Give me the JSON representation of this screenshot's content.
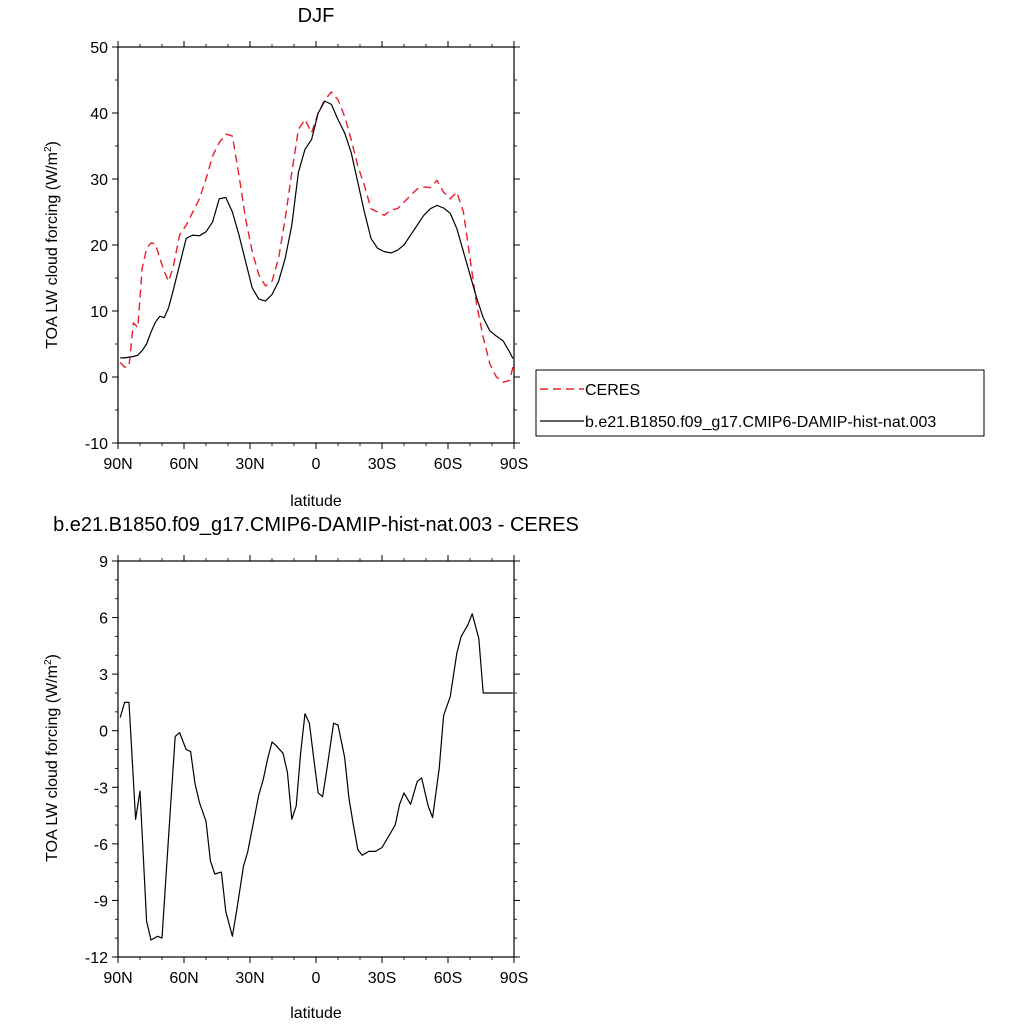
{
  "chart_data": [
    {
      "type": "line",
      "title": "DJF",
      "xlabel": "latitude",
      "ylabel": "TOA LW cloud forcing (W/m",
      "ylabel_sup": "2",
      "ylabel_end": ")",
      "xlim": [
        -90,
        90
      ],
      "ylim": [
        -10,
        50
      ],
      "xticks": [
        -90,
        -60,
        -30,
        0,
        30,
        60,
        90
      ],
      "xtick_labels": [
        "90N",
        "60N",
        "30N",
        "0",
        "30S",
        "60S",
        "90S"
      ],
      "yticks": [
        -10,
        0,
        10,
        20,
        30,
        40,
        50
      ],
      "ytick_labels": [
        "-10",
        "0",
        "10",
        "20",
        "30",
        "40",
        "50"
      ],
      "x": [
        -89,
        -87,
        -85,
        -83,
        -81,
        -79,
        -77,
        -75,
        -73,
        -71,
        -69,
        -67,
        -65,
        -62,
        -59,
        -56,
        -53,
        -50,
        -47,
        -44,
        -41,
        -38,
        -35,
        -32,
        -29,
        -26,
        -23,
        -20,
        -17,
        -14,
        -11,
        -8,
        -5,
        -2,
        1,
        4,
        7,
        10,
        13,
        16,
        19,
        22,
        25,
        28,
        31,
        34,
        37,
        40,
        43,
        46,
        49,
        52,
        55,
        58,
        61,
        64,
        67,
        70,
        73,
        76,
        79,
        82,
        85,
        88,
        89.5
      ],
      "series": [
        {
          "name": "CERES",
          "color": "#e8202a",
          "dash": true,
          "values": [
            2.2,
            1.5,
            1.6,
            8.2,
            7.5,
            16.5,
            19.5,
            20.3,
            20.2,
            18.0,
            16.0,
            14.5,
            16.5,
            21.5,
            23.0,
            25.0,
            27.0,
            30.0,
            33.5,
            35.5,
            36.8,
            36.5,
            30.5,
            24.0,
            19.0,
            15.5,
            13.8,
            14.5,
            18.0,
            24.0,
            31.0,
            37.5,
            39.0,
            37.0,
            40.0,
            42.0,
            43.2,
            42.0,
            39.5,
            36.0,
            32.0,
            29.0,
            25.5,
            25.0,
            24.5,
            25.3,
            25.5,
            26.5,
            27.5,
            28.5,
            28.8,
            28.7,
            29.8,
            28.0,
            27.0,
            28.0,
            25.0,
            18.0,
            11.0,
            6.0,
            2.0,
            0.0,
            -0.8,
            -0.5,
            1.5
          ]
        },
        {
          "name": "b.e21.B1850.f09_g17.CMIP6-DAMIP-hist-nat.003",
          "color": "#000000",
          "dash": false,
          "values": [
            2.9,
            2.9,
            3.0,
            3.1,
            3.3,
            4.0,
            5.0,
            6.8,
            8.3,
            9.2,
            9.0,
            10.5,
            13.0,
            17.0,
            21.0,
            21.5,
            21.4,
            22.0,
            23.5,
            27.0,
            27.2,
            25.0,
            21.5,
            17.5,
            13.5,
            11.8,
            11.5,
            12.5,
            14.5,
            18.0,
            23.0,
            31.0,
            34.5,
            36.0,
            40.0,
            41.8,
            41.3,
            39.0,
            37.0,
            34.0,
            29.5,
            25.0,
            21.0,
            19.5,
            19.0,
            18.8,
            19.2,
            20.0,
            21.5,
            23.0,
            24.5,
            25.5,
            26.0,
            25.6,
            24.8,
            22.5,
            19.0,
            15.5,
            12.0,
            9.0,
            7.0,
            6.2,
            5.5,
            3.8,
            2.8
          ]
        }
      ],
      "legend": [
        "CERES",
        "b.e21.B1850.f09_g17.CMIP6-DAMIP-hist-nat.003"
      ],
      "legend_placement": "right"
    },
    {
      "type": "line",
      "title": "b.e21.B1850.f09_g17.CMIP6-DAMIP-hist-nat.003 - CERES",
      "xlabel": "latitude",
      "ylabel": "TOA LW cloud forcing (W/m",
      "ylabel_sup": "2",
      "ylabel_end": ")",
      "xlim": [
        -90,
        90
      ],
      "ylim": [
        -12,
        9
      ],
      "xticks": [
        -90,
        -60,
        -30,
        0,
        30,
        60,
        90
      ],
      "xtick_labels": [
        "90N",
        "60N",
        "30N",
        "0",
        "30S",
        "60S",
        "90S"
      ],
      "yticks": [
        -12,
        -9,
        -6,
        -3,
        0,
        3,
        6,
        9
      ],
      "ytick_labels": [
        "-12",
        "-9",
        "-6",
        "-3",
        "0",
        "3",
        "6",
        "9"
      ],
      "x": [
        -89,
        -87,
        -85,
        -82,
        -80,
        -77,
        -75,
        -72,
        -70,
        -67,
        -64,
        -62,
        -59,
        -57,
        -55,
        -53,
        -50,
        -48,
        -46,
        -43,
        -41,
        -38,
        -36,
        -33,
        -31,
        -28,
        -26,
        -24,
        -22,
        -20,
        -18,
        -15,
        -13,
        -11,
        -9,
        -7,
        -5,
        -3,
        -1,
        1,
        3,
        5,
        8,
        10,
        13,
        15,
        17,
        19,
        21,
        24,
        27,
        30,
        33,
        36,
        38,
        40,
        43,
        46,
        48,
        51,
        53,
        56,
        58,
        61,
        64,
        66,
        69,
        71,
        74,
        76,
        78,
        81,
        83,
        85,
        87,
        89.5
      ],
      "series": [
        {
          "name": "",
          "color": "#000000",
          "dash": false,
          "values": [
            0.7,
            1.5,
            1.5,
            -4.7,
            -3.2,
            -10.1,
            -11.1,
            -10.9,
            -11.0,
            -5.6,
            -0.3,
            -0.1,
            -1.0,
            -1.1,
            -2.8,
            -3.8,
            -4.8,
            -6.9,
            -7.6,
            -7.5,
            -9.6,
            -10.9,
            -9.5,
            -7.2,
            -6.4,
            -4.6,
            -3.4,
            -2.6,
            -1.5,
            -0.6,
            -0.8,
            -1.2,
            -2.2,
            -4.7,
            -4.0,
            -1.2,
            0.9,
            0.4,
            -1.5,
            -3.3,
            -3.5,
            -2.0,
            0.4,
            0.3,
            -1.4,
            -3.6,
            -5.0,
            -6.3,
            -6.6,
            -6.4,
            -6.4,
            -6.2,
            -5.6,
            -5.0,
            -3.9,
            -3.3,
            -3.9,
            -2.7,
            -2.5,
            -4.0,
            -4.6,
            -2.0,
            0.8,
            1.8,
            4.1,
            5.0,
            5.6,
            6.2,
            4.9,
            2.0,
            2.0,
            2.0,
            2.0,
            2.0,
            2.0,
            2.0
          ]
        }
      ],
      "legend": []
    }
  ]
}
